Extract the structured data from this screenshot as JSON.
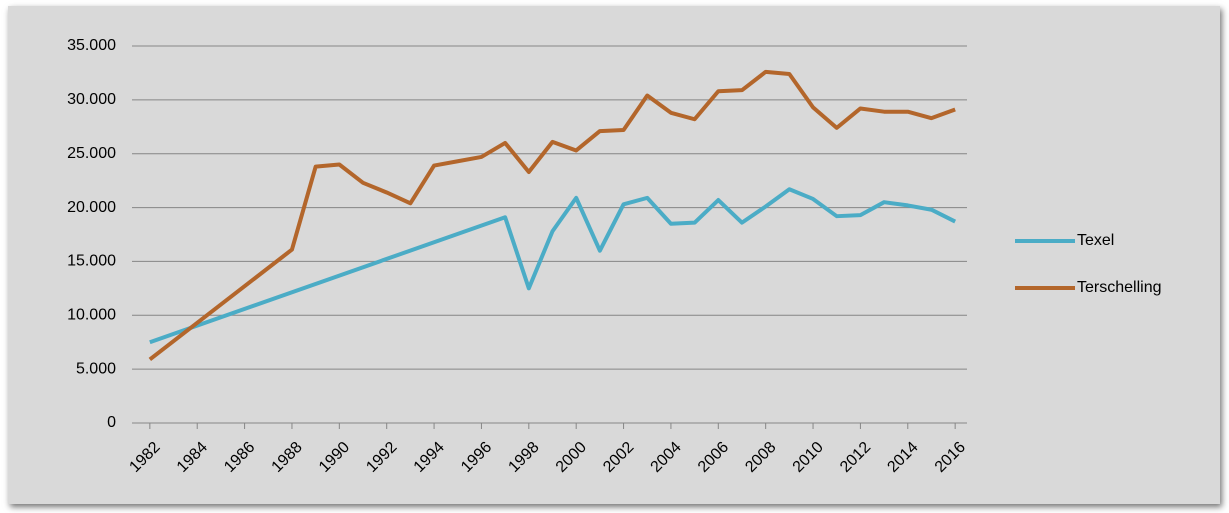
{
  "chart_data": {
    "type": "line",
    "x": [
      1982,
      1983,
      1984,
      1985,
      1986,
      1987,
      1988,
      1989,
      1990,
      1991,
      1992,
      1993,
      1994,
      1995,
      1996,
      1997,
      1998,
      1999,
      2000,
      2001,
      2002,
      2003,
      2004,
      2005,
      2006,
      2007,
      2008,
      2009,
      2010,
      2011,
      2012,
      2013,
      2014,
      2015,
      2016
    ],
    "xlim": [
      1981.5,
      2016.5
    ],
    "xticks": [
      1982,
      1984,
      1986,
      1988,
      1990,
      1992,
      1994,
      1996,
      1998,
      2000,
      2002,
      2004,
      2006,
      2008,
      2010,
      2012,
      2014,
      2016
    ],
    "ylim": [
      0,
      35000
    ],
    "yticks": [
      0,
      {
        "value": 5000,
        "label": "5.000"
      },
      {
        "value": 10000,
        "label": "10.000"
      },
      {
        "value": 15000,
        "label": "15.000"
      },
      {
        "value": 20000,
        "label": "20.000"
      },
      {
        "value": 25000,
        "label": "25.000"
      },
      {
        "value": 30000,
        "label": "30.000"
      },
      {
        "value": 35000,
        "label": "35.000"
      }
    ],
    "grid": true,
    "legend": "right",
    "series": [
      {
        "name": "Texel",
        "color": "#4bacc6",
        "values": [
          7500,
          null,
          null,
          null,
          null,
          null,
          null,
          null,
          null,
          null,
          null,
          null,
          null,
          null,
          null,
          19100,
          12500,
          17800,
          20900,
          16000,
          20300,
          20900,
          18500,
          18600,
          20700,
          18600,
          20100,
          21700,
          20800,
          19200,
          19300,
          20500,
          20200,
          19800,
          18700
        ]
      },
      {
        "name": "Terschelling",
        "color": "#b3662b",
        "values": [
          5900,
          null,
          null,
          null,
          null,
          null,
          16100,
          23800,
          24000,
          22300,
          21400,
          20400,
          23900,
          24300,
          24700,
          26000,
          23300,
          26100,
          25300,
          27100,
          27200,
          30400,
          28800,
          28200,
          30800,
          30900,
          32600,
          32400,
          29300,
          27400,
          29200,
          28900,
          28900,
          28300,
          29100
        ]
      }
    ]
  }
}
